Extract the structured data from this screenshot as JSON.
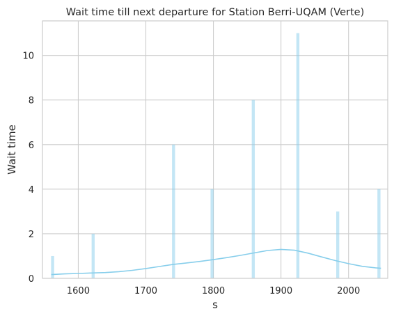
{
  "chart_data": {
    "type": "bar",
    "title": "Wait time till next departure for Station Berri-UQAM (Verte)",
    "xlabel": "s",
    "ylabel": "Wait time",
    "xlim": [
      1547,
      2058
    ],
    "ylim": [
      0,
      11.55
    ],
    "xticks": [
      1600,
      1700,
      1800,
      1900,
      2000
    ],
    "yticks": [
      0,
      2,
      4,
      6,
      8,
      10
    ],
    "grid": true,
    "bar_width": 4.5,
    "bar_color": "#87CEEB",
    "bar_opacity": 0.5,
    "series": [
      {
        "values": [
          {
            "x": 1562,
            "y": 1
          },
          {
            "x": 1622,
            "y": 2
          },
          {
            "x": 1741,
            "y": 6
          },
          {
            "x": 1798,
            "y": 4
          },
          {
            "x": 1859,
            "y": 8
          },
          {
            "x": 1925,
            "y": 11
          },
          {
            "x": 1984,
            "y": 3
          },
          {
            "x": 2045,
            "y": 4
          }
        ]
      }
    ],
    "kde": {
      "color": "#87CEEB",
      "points": [
        [
          1560,
          0.17
        ],
        [
          1580,
          0.2
        ],
        [
          1600,
          0.22
        ],
        [
          1620,
          0.24
        ],
        [
          1640,
          0.26
        ],
        [
          1660,
          0.3
        ],
        [
          1680,
          0.36
        ],
        [
          1700,
          0.44
        ],
        [
          1720,
          0.53
        ],
        [
          1740,
          0.62
        ],
        [
          1760,
          0.69
        ],
        [
          1780,
          0.76
        ],
        [
          1800,
          0.84
        ],
        [
          1820,
          0.93
        ],
        [
          1840,
          1.03
        ],
        [
          1860,
          1.14
        ],
        [
          1880,
          1.25
        ],
        [
          1900,
          1.3
        ],
        [
          1920,
          1.26
        ],
        [
          1940,
          1.13
        ],
        [
          1960,
          0.96
        ],
        [
          1980,
          0.8
        ],
        [
          2000,
          0.66
        ],
        [
          2020,
          0.54
        ],
        [
          2040,
          0.47
        ],
        [
          2048,
          0.45
        ]
      ]
    }
  }
}
